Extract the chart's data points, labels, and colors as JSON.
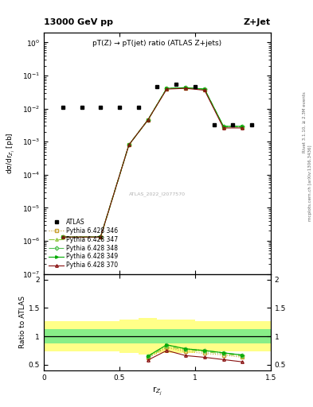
{
  "title_main": "pT(Z) → pT(jet) ratio (ATLAS Z+jets)",
  "header_left": "13000 GeV pp",
  "header_right": "Z+Jet",
  "ylabel_main": "dσ/dr$_{Z_j}$ [pb]",
  "ylabel_ratio": "Ratio to ATLAS",
  "xlabel": "r$_{Z_j}$",
  "watermark": "ATLAS_2022_I2077570",
  "right_label": "Rivet 3.1.10, ≥ 2.3M events",
  "right_label2": "mcplots.cern.ch [arXiv:1306.3436]",
  "atlas_x": [
    0.125,
    0.25,
    0.375,
    0.5,
    0.625,
    0.75,
    0.875,
    1.0,
    1.125,
    1.25,
    1.375
  ],
  "atlas_y": [
    0.011,
    0.011,
    0.011,
    0.011,
    0.011,
    0.045,
    0.055,
    0.045,
    0.0032,
    0.0032,
    0.0032
  ],
  "mc_x": [
    0.125,
    0.375,
    0.5625,
    0.6875,
    0.8125,
    0.9375,
    1.0625,
    1.1875,
    1.3125
  ],
  "pythia346_y": [
    1.3e-06,
    1.3e-06,
    0.0008,
    0.0045,
    0.04,
    0.042,
    0.038,
    0.0028,
    0.0028
  ],
  "pythia347_y": [
    1.3e-06,
    1.3e-06,
    0.0008,
    0.0045,
    0.04,
    0.042,
    0.038,
    0.0028,
    0.0028
  ],
  "pythia348_y": [
    1.3e-06,
    1.3e-06,
    0.0008,
    0.0045,
    0.041,
    0.043,
    0.039,
    0.0029,
    0.0029
  ],
  "pythia349_y": [
    1.3e-06,
    1.3e-06,
    0.0008,
    0.0045,
    0.041,
    0.043,
    0.039,
    0.0029,
    0.0029
  ],
  "pythia370_y": [
    1.3e-06,
    1.3e-06,
    0.0008,
    0.0045,
    0.039,
    0.041,
    0.036,
    0.0026,
    0.0026
  ],
  "ratio_x": [
    0.6875,
    0.8125,
    0.9375,
    1.0625,
    1.1875,
    1.3125
  ],
  "pythia346_ratio": [
    0.62,
    0.8,
    0.73,
    0.7,
    0.67,
    0.63
  ],
  "pythia347_ratio": [
    0.63,
    0.82,
    0.76,
    0.73,
    0.69,
    0.65
  ],
  "pythia348_ratio": [
    0.65,
    0.85,
    0.78,
    0.75,
    0.71,
    0.67
  ],
  "pythia349_ratio": [
    0.65,
    0.85,
    0.78,
    0.75,
    0.71,
    0.67
  ],
  "pythia370_ratio": [
    0.58,
    0.75,
    0.66,
    0.63,
    0.59,
    0.55
  ],
  "band_x_edges": [
    0.0,
    0.25,
    0.5,
    0.625,
    0.75,
    0.875,
    1.0,
    1.125,
    1.25,
    1.5
  ],
  "band_green_lo": [
    0.88,
    0.88,
    0.88,
    0.88,
    0.88,
    0.88,
    0.88,
    0.88,
    0.88
  ],
  "band_green_hi": [
    1.12,
    1.12,
    1.12,
    1.12,
    1.12,
    1.12,
    1.12,
    1.12,
    1.12
  ],
  "band_yellow_lo": [
    0.73,
    0.73,
    0.7,
    0.68,
    0.7,
    0.7,
    0.73,
    0.73,
    0.73
  ],
  "band_yellow_hi": [
    1.27,
    1.27,
    1.3,
    1.32,
    1.3,
    1.3,
    1.27,
    1.27,
    1.27
  ],
  "color346": "#c8a030",
  "color347": "#90c840",
  "color348": "#50c050",
  "color349": "#00aa00",
  "color370": "#881010",
  "ylim_main_lo": 1e-07,
  "ylim_main_hi": 2.0,
  "xlim_lo": 0.0,
  "xlim_hi": 1.5,
  "ylim_ratio_lo": 0.4,
  "ylim_ratio_hi": 2.1
}
